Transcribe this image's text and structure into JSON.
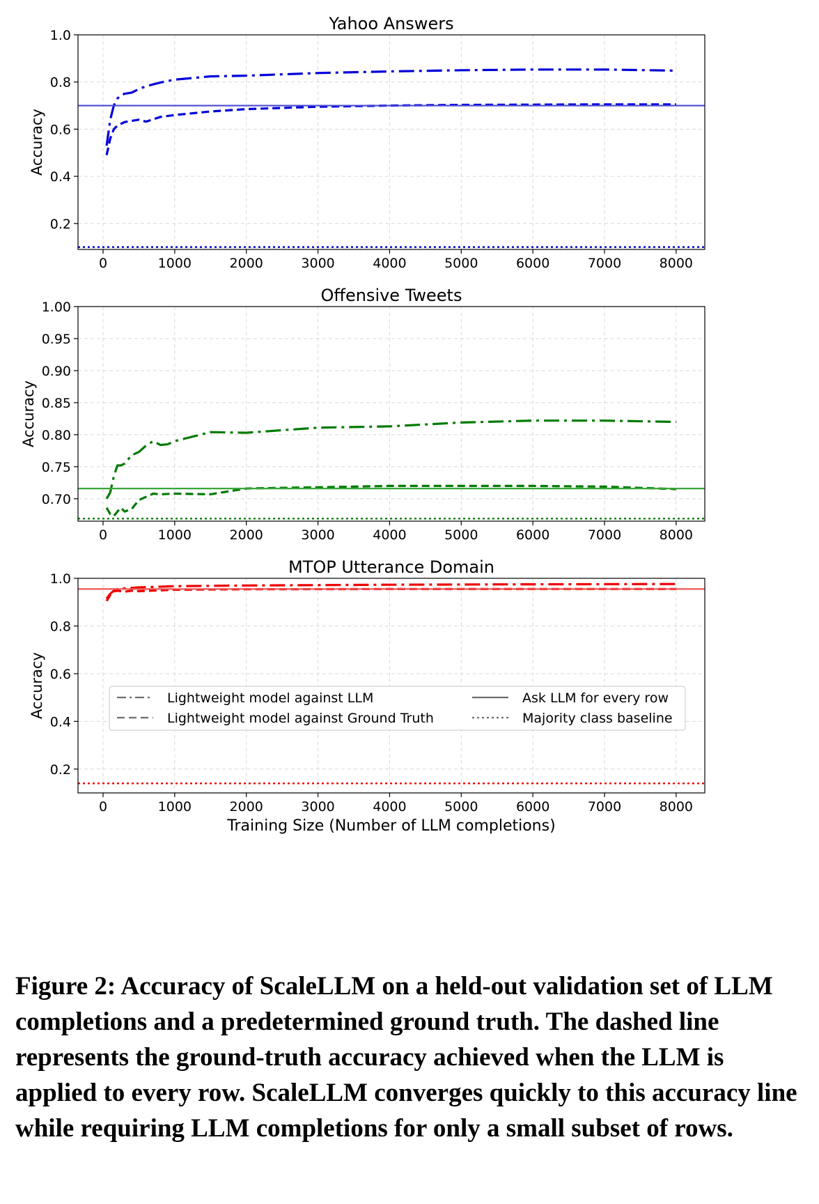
{
  "figure_caption": "Figure 2: Accuracy of ScaleLLM on a held-out validation set of LLM completions and a predetermined ground truth. The dashed line represents the ground-truth accuracy achieved when the LLM is applied to every row. ScaleLLM converges quickly to this accuracy line while requiring LLM completions for only a small subset of rows.",
  "legend": [
    {
      "label": "Lightweight model against LLM",
      "style": "dashdot"
    },
    {
      "label": "Lightweight model against Ground Truth",
      "style": "dashed"
    },
    {
      "label": "Ask LLM for every row",
      "style": "solid"
    },
    {
      "label": "Majority class baseline",
      "style": "dotted"
    }
  ],
  "chart_data": [
    {
      "type": "line",
      "title": "Yahoo Answers",
      "xlabel": "",
      "ylabel": "Accuracy",
      "color": "#0000d8",
      "hline_color": "#4a4ad8",
      "xlim": [
        -350,
        8400
      ],
      "ylim": [
        0.09,
        1.0
      ],
      "xticks": [
        0,
        1000,
        2000,
        3000,
        4000,
        5000,
        6000,
        7000,
        8000
      ],
      "yticks": [
        0.2,
        0.4,
        0.6,
        0.8,
        1.0
      ],
      "ytick_labels": [
        "0.2",
        "0.4",
        "0.6",
        "0.8",
        "1.0"
      ],
      "grid": true,
      "series": [
        {
          "style": "dashdot",
          "x": [
            50,
            100,
            150,
            200,
            250,
            300,
            400,
            500,
            600,
            700,
            800,
            1000,
            1500,
            2000,
            3000,
            4000,
            5000,
            6000,
            7000,
            8000
          ],
          "y": [
            0.53,
            0.64,
            0.7,
            0.73,
            0.745,
            0.75,
            0.755,
            0.77,
            0.782,
            0.79,
            0.798,
            0.81,
            0.824,
            0.827,
            0.838,
            0.845,
            0.85,
            0.853,
            0.853,
            0.848
          ]
        },
        {
          "style": "dashed",
          "x": [
            50,
            100,
            150,
            200,
            300,
            400,
            500,
            600,
            700,
            800,
            1000,
            1500,
            2000,
            3000,
            4000,
            5000,
            6000,
            7000,
            8000
          ],
          "y": [
            0.49,
            0.56,
            0.6,
            0.615,
            0.63,
            0.635,
            0.64,
            0.632,
            0.642,
            0.652,
            0.66,
            0.675,
            0.685,
            0.695,
            0.7,
            0.703,
            0.704,
            0.705,
            0.705
          ]
        },
        {
          "style": "solid",
          "hline": 0.7
        },
        {
          "style": "dotted",
          "hline": 0.1
        }
      ]
    },
    {
      "type": "line",
      "title": "Offensive Tweets",
      "xlabel": "",
      "ylabel": "Accuracy",
      "color": "#007a00",
      "hline_color": "#3aa63a",
      "xlim": [
        -350,
        8400
      ],
      "ylim": [
        0.665,
        1.0
      ],
      "xticks": [
        0,
        1000,
        2000,
        3000,
        4000,
        5000,
        6000,
        7000,
        8000
      ],
      "yticks": [
        0.7,
        0.75,
        0.8,
        0.85,
        0.9,
        0.95,
        1.0
      ],
      "ytick_labels": [
        "0.70",
        "0.75",
        "0.80",
        "0.85",
        "0.90",
        "0.95",
        "1.00"
      ],
      "grid": true,
      "series": [
        {
          "style": "dashdot",
          "x": [
            50,
            100,
            150,
            200,
            250,
            300,
            400,
            500,
            600,
            700,
            800,
            900,
            1000,
            1500,
            2000,
            3000,
            4000,
            5000,
            6000,
            7000,
            8000
          ],
          "y": [
            0.7,
            0.71,
            0.735,
            0.752,
            0.752,
            0.755,
            0.768,
            0.773,
            0.783,
            0.79,
            0.784,
            0.785,
            0.79,
            0.804,
            0.803,
            0.811,
            0.813,
            0.819,
            0.822,
            0.822,
            0.82
          ]
        },
        {
          "style": "dashed",
          "x": [
            50,
            100,
            150,
            200,
            250,
            300,
            400,
            500,
            600,
            700,
            800,
            1000,
            1500,
            2000,
            3000,
            4000,
            5000,
            6000,
            7000,
            8000
          ],
          "y": [
            0.686,
            0.676,
            0.673,
            0.68,
            0.686,
            0.68,
            0.684,
            0.698,
            0.703,
            0.708,
            0.707,
            0.708,
            0.707,
            0.716,
            0.718,
            0.72,
            0.72,
            0.72,
            0.719,
            0.715
          ]
        },
        {
          "style": "solid",
          "hline": 0.716
        },
        {
          "style": "dotted",
          "hline": 0.669
        }
      ]
    },
    {
      "type": "line",
      "title": "MTOP Utterance Domain",
      "xlabel": "Training Size (Number of LLM completions)",
      "ylabel": "Accuracy",
      "color": "#ee0000",
      "hline_color": "#ee5555",
      "xlim": [
        -350,
        8400
      ],
      "ylim": [
        0.1,
        1.0
      ],
      "xticks": [
        0,
        1000,
        2000,
        3000,
        4000,
        5000,
        6000,
        7000,
        8000
      ],
      "yticks": [
        0.2,
        0.4,
        0.6,
        0.8,
        1.0
      ],
      "ytick_labels": [
        "0.2",
        "0.4",
        "0.6",
        "0.8",
        "1.0"
      ],
      "grid": true,
      "legend_position": "center",
      "series": [
        {
          "style": "dashdot",
          "x": [
            50,
            100,
            150,
            200,
            300,
            500,
            1000,
            2000,
            4000,
            6000,
            8000
          ],
          "y": [
            0.915,
            0.935,
            0.948,
            0.955,
            0.958,
            0.962,
            0.967,
            0.97,
            0.973,
            0.975,
            0.976
          ]
        },
        {
          "style": "dashed",
          "x": [
            50,
            100,
            150,
            200,
            300,
            400,
            500,
            1000,
            2000,
            4000,
            6000,
            8000
          ],
          "y": [
            0.905,
            0.93,
            0.945,
            0.948,
            0.944,
            0.948,
            0.946,
            0.952,
            0.954,
            0.955,
            0.955,
            0.955
          ]
        },
        {
          "style": "solid",
          "hline": 0.955
        },
        {
          "style": "dotted",
          "hline": 0.14
        }
      ]
    }
  ]
}
